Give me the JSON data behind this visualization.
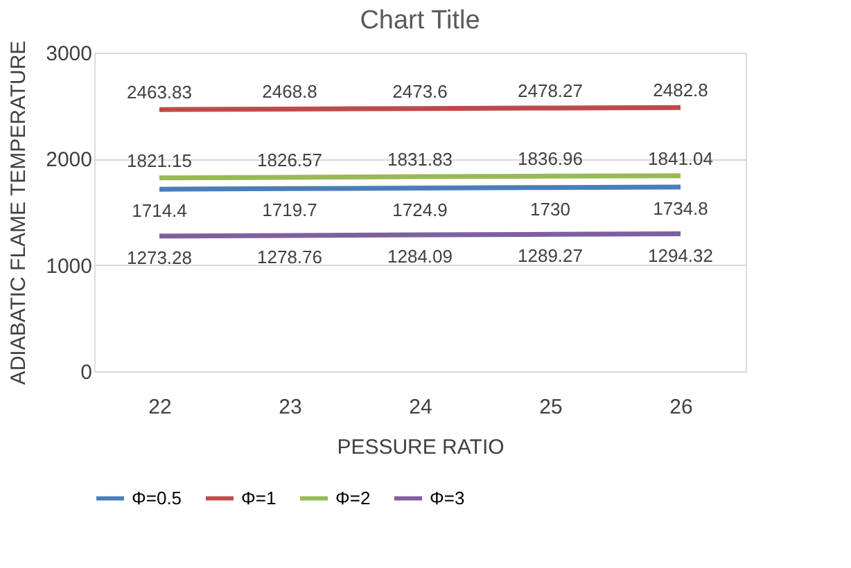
{
  "chart_data": {
    "type": "line",
    "title": "Chart Title",
    "xlabel": "PESSURE RATIO",
    "ylabel": "ADIABATIC FLAME TEMPERATURE",
    "categories": [
      "22",
      "23",
      "24",
      "25",
      "26"
    ],
    "series": [
      {
        "name": "Φ=0.5",
        "color": "#4a7ebb",
        "values": [
          1714.4,
          1719.7,
          1724.9,
          1730,
          1734.8
        ]
      },
      {
        "name": "Φ=1",
        "color": "#be4b48",
        "values": [
          2463.83,
          2468.8,
          2473.6,
          2478.27,
          2482.8
        ]
      },
      {
        "name": "Φ=2",
        "color": "#98b954",
        "values": [
          1821.15,
          1826.57,
          1831.83,
          1836.96,
          1841.04
        ]
      },
      {
        "name": "Φ=3",
        "color": "#7d60a0",
        "values": [
          1273.28,
          1278.76,
          1284.09,
          1289.27,
          1294.32
        ]
      }
    ],
    "ylim": [
      0,
      3000
    ],
    "yticks": [
      0,
      1000,
      2000,
      3000
    ],
    "grid": "y",
    "legend": "bottom",
    "data_labels": true,
    "marker": "none",
    "line_style": "solid"
  }
}
